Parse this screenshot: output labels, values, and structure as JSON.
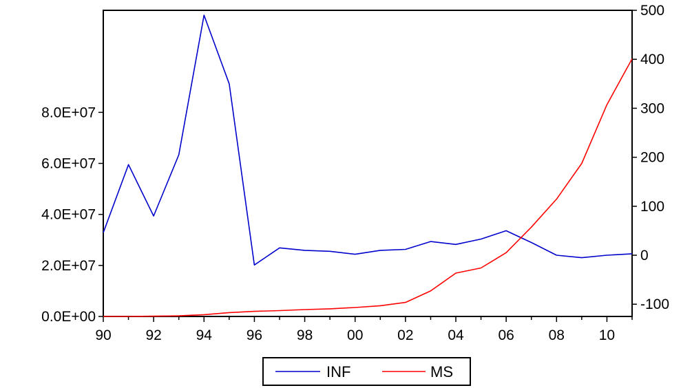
{
  "chart_data": {
    "type": "line",
    "x": [
      "90",
      "91",
      "92",
      "93",
      "94",
      "95",
      "96",
      "97",
      "98",
      "99",
      "00",
      "01",
      "02",
      "03",
      "04",
      "05",
      "06",
      "07",
      "08",
      "09",
      "10",
      "11"
    ],
    "x_tick_labels": [
      "90",
      "92",
      "94",
      "96",
      "98",
      "00",
      "02",
      "04",
      "06",
      "08",
      "10"
    ],
    "left_axis": {
      "ylim": [
        0,
        120000000
      ],
      "tick_values": [
        0,
        20000000,
        40000000,
        60000000,
        80000000
      ],
      "tick_labels": [
        "0.0E+00",
        "2.0E+07",
        "4.0E+07",
        "6.0E+07",
        "8.0E+07"
      ]
    },
    "right_axis": {
      "ylim": [
        -125,
        500
      ],
      "tick_values": [
        -100,
        0,
        100,
        200,
        300,
        400,
        500
      ],
      "tick_labels": [
        "-100",
        "0",
        "100",
        "200",
        "300",
        "400",
        "500"
      ]
    },
    "grid": false,
    "legend_position": "bottom-center",
    "series": [
      {
        "name": "INF",
        "axis": "right",
        "color": "#0000cc",
        "values": [
          46,
          185,
          80,
          205,
          490,
          350,
          -20,
          15,
          10,
          8,
          2,
          10,
          12,
          28,
          22,
          33,
          50,
          26,
          0,
          -5,
          0,
          3
        ]
      },
      {
        "name": "MS",
        "axis": "left",
        "color": "#ff0000",
        "values": [
          0,
          0,
          100000,
          250000,
          700000,
          1500000,
          2000000,
          2300000,
          2700000,
          3000000,
          3500000,
          4200000,
          5500000,
          10000000,
          17000000,
          19000000,
          25000000,
          35000000,
          46000000,
          60000000,
          83000000,
          101000000
        ]
      }
    ]
  }
}
